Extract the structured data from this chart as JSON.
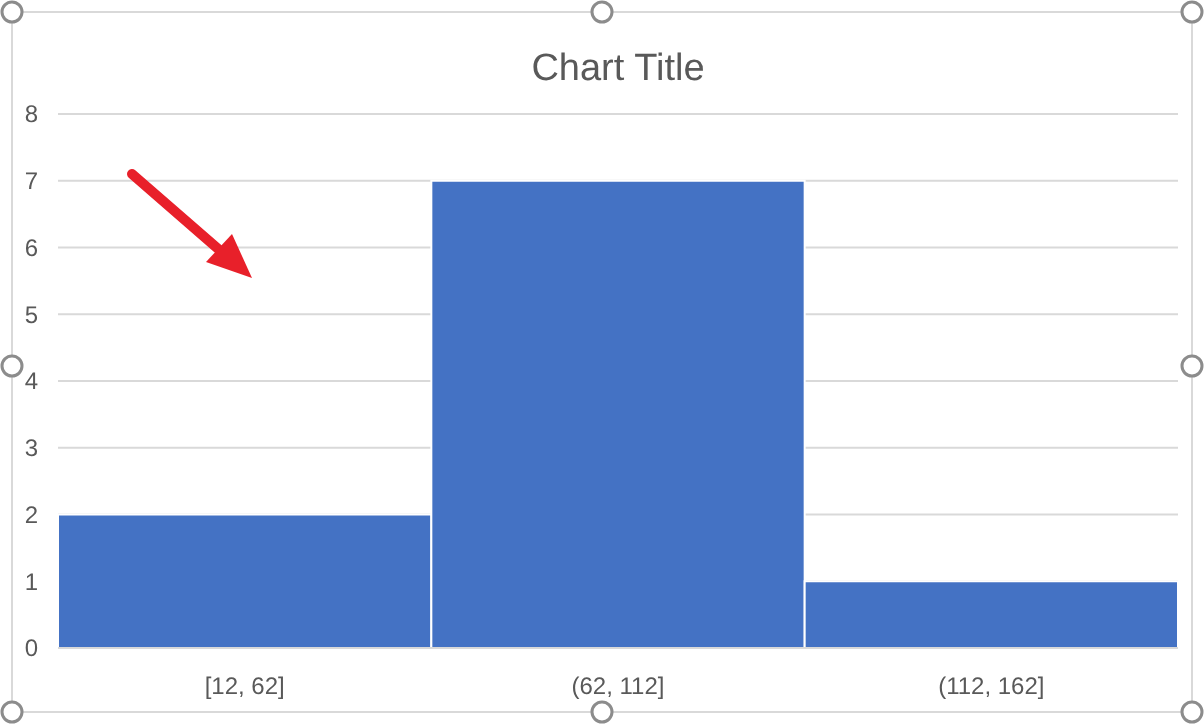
{
  "chart_data": {
    "type": "bar",
    "title": "Chart Title",
    "categories": [
      "[12, 62]",
      "(62, 112]",
      "(112, 162]"
    ],
    "values": [
      2,
      7,
      1
    ],
    "color": "#4472c4",
    "ylim": [
      0,
      8
    ],
    "yticks": [
      0,
      1,
      2,
      3,
      4,
      5,
      6,
      7,
      8
    ],
    "grid": "y"
  }
}
